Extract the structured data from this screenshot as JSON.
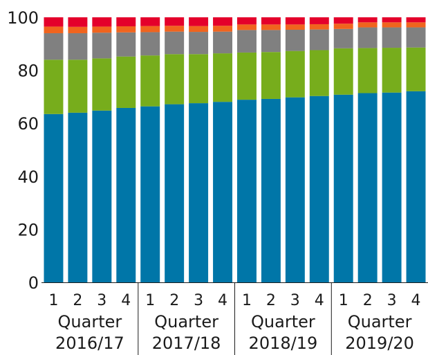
{
  "chart_data": {
    "type": "bar",
    "stacked": true,
    "ylim": [
      0,
      100
    ],
    "yticks": [
      0,
      20,
      40,
      60,
      80,
      100
    ],
    "categories": [
      "1",
      "2",
      "3",
      "4",
      "1",
      "2",
      "3",
      "4",
      "1",
      "2",
      "3",
      "4",
      "1",
      "2",
      "3",
      "4"
    ],
    "groups": [
      {
        "line1": "Quarter",
        "line2": "2016/17"
      },
      {
        "line1": "Quarter",
        "line2": "2017/18"
      },
      {
        "line1": "Quarter",
        "line2": "2018/19"
      },
      {
        "line1": "Quarter",
        "line2": "2019/20"
      }
    ],
    "colors": [
      "#0076a8",
      "#77ad1c",
      "#808080",
      "#f0641e",
      "#e4002b"
    ],
    "series": [
      {
        "values": [
          63.5,
          64.0,
          64.8,
          65.8,
          66.4,
          67.2,
          67.6,
          68.1,
          68.9,
          69.2,
          69.8,
          70.3,
          70.8,
          71.4,
          71.6,
          72.1
        ]
      },
      {
        "values": [
          20.5,
          20.0,
          19.7,
          19.4,
          19.2,
          18.9,
          18.5,
          18.3,
          17.8,
          17.7,
          17.5,
          17.3,
          17.5,
          17.0,
          16.9,
          16.5
        ]
      },
      {
        "values": [
          10.0,
          10.0,
          9.7,
          9.1,
          8.8,
          8.5,
          8.4,
          8.2,
          8.5,
          8.3,
          8.0,
          7.8,
          7.3,
          7.8,
          7.7,
          7.6
        ]
      },
      {
        "values": [
          2.5,
          2.4,
          2.3,
          2.3,
          2.3,
          2.2,
          2.2,
          2.2,
          2.1,
          2.1,
          2.0,
          2.0,
          2.0,
          1.9,
          1.9,
          1.9
        ]
      },
      {
        "values": [
          3.5,
          3.6,
          3.5,
          3.4,
          3.3,
          3.2,
          3.3,
          3.2,
          2.7,
          2.7,
          2.7,
          2.6,
          2.4,
          1.9,
          1.9,
          1.9
        ]
      }
    ]
  }
}
